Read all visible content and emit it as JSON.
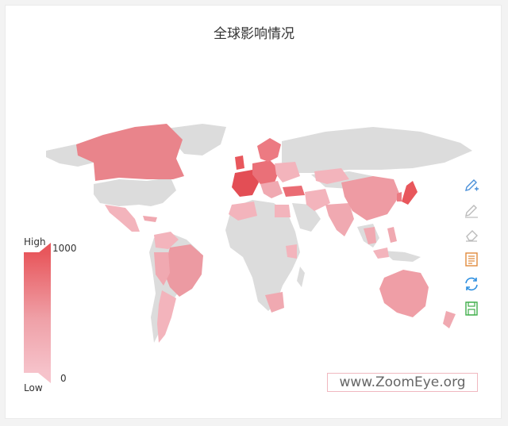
{
  "title": "全球影响情况",
  "legend": {
    "high_label": "High",
    "low_label": "Low",
    "max": 1000,
    "min": 0,
    "max_text": "1000",
    "min_text": "0",
    "color_high": "#e8575c",
    "color_low": "#f6c3cb",
    "no_data_color": "#dcdcdc"
  },
  "toolbox": [
    {
      "icon": "pencil-plus-icon",
      "color": "#4a90d9"
    },
    {
      "icon": "pencil-icon",
      "color": "#bbbbbb"
    },
    {
      "icon": "eraser-icon",
      "color": "#bbbbbb"
    },
    {
      "icon": "data-view-icon",
      "color": "#e08a3c"
    },
    {
      "icon": "refresh-icon",
      "color": "#2e8fe0"
    },
    {
      "icon": "save-icon",
      "color": "#3fae49"
    }
  ],
  "watermark": "www.ZoomEye.org"
}
